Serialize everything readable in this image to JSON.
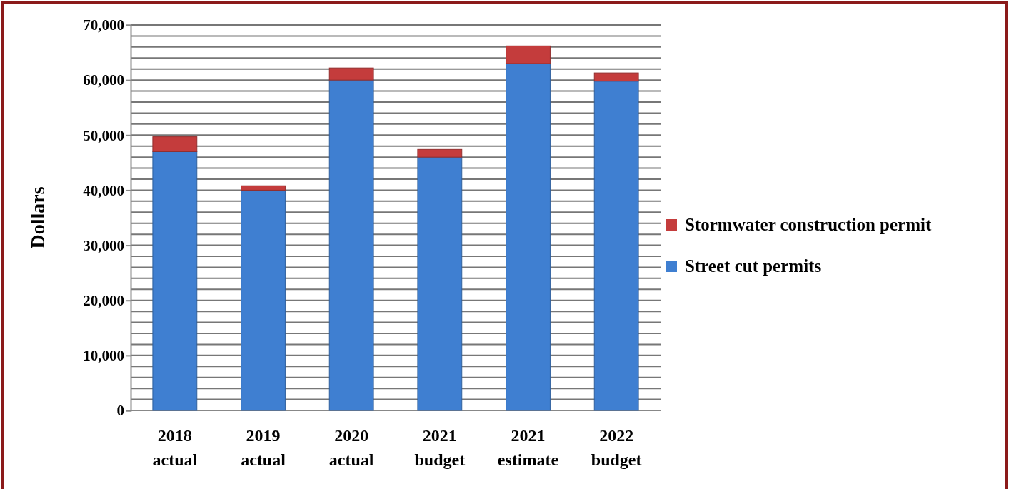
{
  "chart_data": {
    "type": "bar",
    "stacked": true,
    "ylabel": "Dollars",
    "categories": [
      "2018\nactual",
      "2019\nactual",
      "2020\nactual",
      "2021\nbudget",
      "2021\nestimate",
      "2022\nbudget"
    ],
    "series": [
      {
        "name": "Street cut permits",
        "color": "#3f7fd1",
        "values": [
          47000,
          40000,
          60000,
          46000,
          63000,
          59800
        ]
      },
      {
        "name": "Stormwater construction permit",
        "color": "#c43c3c",
        "values": [
          2700,
          800,
          2200,
          1400,
          3200,
          1500
        ]
      }
    ],
    "ylim": [
      0,
      70000
    ],
    "yticks": [
      {
        "value": 0,
        "label": "0"
      },
      {
        "value": 10000,
        "label": "10,000"
      },
      {
        "value": 20000,
        "label": "20,000"
      },
      {
        "value": 30000,
        "label": "30,000"
      },
      {
        "value": 40000,
        "label": "40,000"
      },
      {
        "value": 50000,
        "label": "50,000"
      },
      {
        "value": 60000,
        "label": "60,000"
      },
      {
        "value": 70000,
        "label": "70,000"
      }
    ],
    "grid": true,
    "legend": "right"
  }
}
